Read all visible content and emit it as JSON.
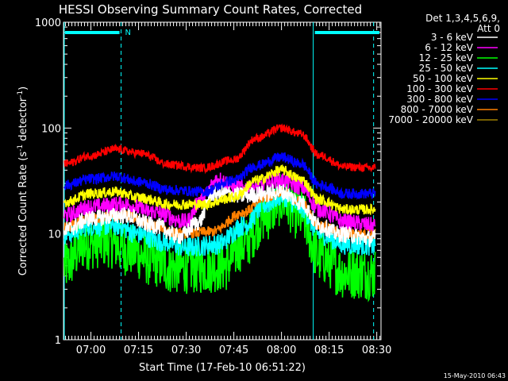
{
  "chart_data": {
    "type": "line",
    "title": "HESSI Observing Summary Count Rates, Corrected",
    "xlabel": "Start Time (17-Feb-10 06:51:22)",
    "ylabel_main": "Corrected Count Rate (s",
    "ylabel_sup1": "-1",
    "ylabel_mid": " detector",
    "ylabel_sup2": "-1",
    "ylabel_end": ")",
    "yscale": "log",
    "ylim": [
      1,
      1000
    ],
    "xlim": [
      "06:51:22",
      "08:31:20"
    ],
    "x_ticks": [
      "07:00",
      "07:15",
      "07:30",
      "07:45",
      "08:00",
      "08:15",
      "08:30"
    ],
    "y_tick_labels": [
      "1",
      "10",
      "100",
      "1000"
    ],
    "legend": {
      "position": "top-right",
      "header": [
        "Det 1,3,4,5,6,9,",
        "Att 0"
      ]
    },
    "timestamp": "15-May-2010 06:43",
    "annotations": {
      "night_marker": "N",
      "night_periods": [
        [
          "06:51:22",
          "07:09:30"
        ],
        [
          "08:10:00",
          "08:31:20"
        ]
      ],
      "night_lines": [
        "07:09:30",
        "08:10:00",
        "08:29:00"
      ]
    },
    "series": [
      {
        "name": "3 - 6 keV",
        "color": "#ffffff",
        "noise": 0.08,
        "points": [
          [
            "06:52",
            11
          ],
          [
            "07:00",
            14
          ],
          [
            "07:10",
            15
          ],
          [
            "07:20",
            12
          ],
          [
            "07:28",
            9.5
          ],
          [
            "07:34",
            13
          ],
          [
            "07:38",
            24
          ],
          [
            "07:43",
            24
          ],
          [
            "07:48",
            23
          ],
          [
            "07:55",
            24
          ],
          [
            "08:00",
            25
          ],
          [
            "08:06",
            20
          ],
          [
            "08:12",
            12
          ],
          [
            "08:18",
            10
          ],
          [
            "08:29",
            9
          ]
        ]
      },
      {
        "name": "6 - 12 keV",
        "color": "#ff00ff",
        "noise": 0.08,
        "points": [
          [
            "06:52",
            15
          ],
          [
            "07:00",
            18
          ],
          [
            "07:10",
            19
          ],
          [
            "07:20",
            16
          ],
          [
            "07:30",
            13
          ],
          [
            "07:35",
            22
          ],
          [
            "07:40",
            33
          ],
          [
            "07:45",
            28
          ],
          [
            "07:50",
            27
          ],
          [
            "08:00",
            32
          ],
          [
            "08:06",
            28
          ],
          [
            "08:12",
            17
          ],
          [
            "08:20",
            13
          ],
          [
            "08:29",
            12
          ]
        ]
      },
      {
        "name": "12 - 25 keV",
        "color": "#00ff00",
        "noise": 0.25,
        "points": [
          [
            "06:52",
            5
          ],
          [
            "06:58",
            8
          ],
          [
            "07:05",
            8.5
          ],
          [
            "07:12",
            7
          ],
          [
            "07:20",
            5.5
          ],
          [
            "07:25",
            4.8
          ],
          [
            "07:35",
            4.8
          ],
          [
            "07:42",
            5
          ],
          [
            "07:48",
            8
          ],
          [
            "07:55",
            15
          ],
          [
            "08:00",
            21
          ],
          [
            "08:06",
            15
          ],
          [
            "08:12",
            6
          ],
          [
            "08:20",
            4.3
          ],
          [
            "08:29",
            4.2
          ]
        ]
      },
      {
        "name": "25 - 50 keV",
        "color": "#00ffff",
        "noise": 0.1,
        "points": [
          [
            "06:52",
            10
          ],
          [
            "07:00",
            12
          ],
          [
            "07:08",
            12
          ],
          [
            "07:15",
            10
          ],
          [
            "07:22",
            8.5
          ],
          [
            "07:30",
            7.5
          ],
          [
            "07:40",
            8
          ],
          [
            "07:48",
            12
          ],
          [
            "07:55",
            19
          ],
          [
            "08:00",
            23
          ],
          [
            "08:06",
            18
          ],
          [
            "08:12",
            10
          ],
          [
            "08:20",
            8
          ],
          [
            "08:29",
            7.8
          ]
        ]
      },
      {
        "name": "50 - 100 keV",
        "color": "#ffff00",
        "noise": 0.05,
        "points": [
          [
            "06:52",
            20
          ],
          [
            "07:00",
            24
          ],
          [
            "07:08",
            25
          ],
          [
            "07:15",
            22
          ],
          [
            "07:25",
            19
          ],
          [
            "07:35",
            19
          ],
          [
            "07:45",
            22
          ],
          [
            "07:52",
            32
          ],
          [
            "08:00",
            40
          ],
          [
            "08:06",
            33
          ],
          [
            "08:12",
            21
          ],
          [
            "08:20",
            17
          ],
          [
            "08:29",
            17
          ]
        ]
      },
      {
        "name": "100 - 300 keV",
        "color": "#ff0000",
        "noise": 0.04,
        "points": [
          [
            "06:52",
            46
          ],
          [
            "07:00",
            55
          ],
          [
            "07:08",
            63
          ],
          [
            "07:15",
            58
          ],
          [
            "07:25",
            45
          ],
          [
            "07:35",
            42
          ],
          [
            "07:45",
            50
          ],
          [
            "07:52",
            80
          ],
          [
            "08:00",
            100
          ],
          [
            "08:06",
            88
          ],
          [
            "08:12",
            55
          ],
          [
            "08:20",
            43
          ],
          [
            "08:29",
            42
          ]
        ]
      },
      {
        "name": "300 - 800 keV",
        "color": "#0000ff",
        "noise": 0.05,
        "points": [
          [
            "06:52",
            29
          ],
          [
            "07:00",
            33
          ],
          [
            "07:08",
            35
          ],
          [
            "07:15",
            31
          ],
          [
            "07:25",
            26
          ],
          [
            "07:35",
            25
          ],
          [
            "07:45",
            32
          ],
          [
            "07:52",
            44
          ],
          [
            "08:00",
            53
          ],
          [
            "08:06",
            46
          ],
          [
            "08:12",
            29
          ],
          [
            "08:20",
            24
          ],
          [
            "08:29",
            24
          ]
        ]
      },
      {
        "name": "800 - 7000 keV",
        "color": "#ff8000",
        "noise": 0.05,
        "points": [
          [
            "06:52",
            11.5
          ],
          [
            "07:00",
            14
          ],
          [
            "07:10",
            15
          ],
          [
            "07:20",
            12
          ],
          [
            "07:28",
            10
          ],
          [
            "07:38",
            10.5
          ],
          [
            "07:48",
            16
          ],
          [
            "07:55",
            22
          ],
          [
            "08:00",
            25
          ],
          [
            "08:06",
            20
          ],
          [
            "08:12",
            12
          ],
          [
            "08:20",
            10
          ],
          [
            "08:29",
            10
          ]
        ]
      },
      {
        "name": "7000 - 20000 keV",
        "color": "#a08000",
        "noise": 0.0,
        "points": []
      }
    ]
  }
}
